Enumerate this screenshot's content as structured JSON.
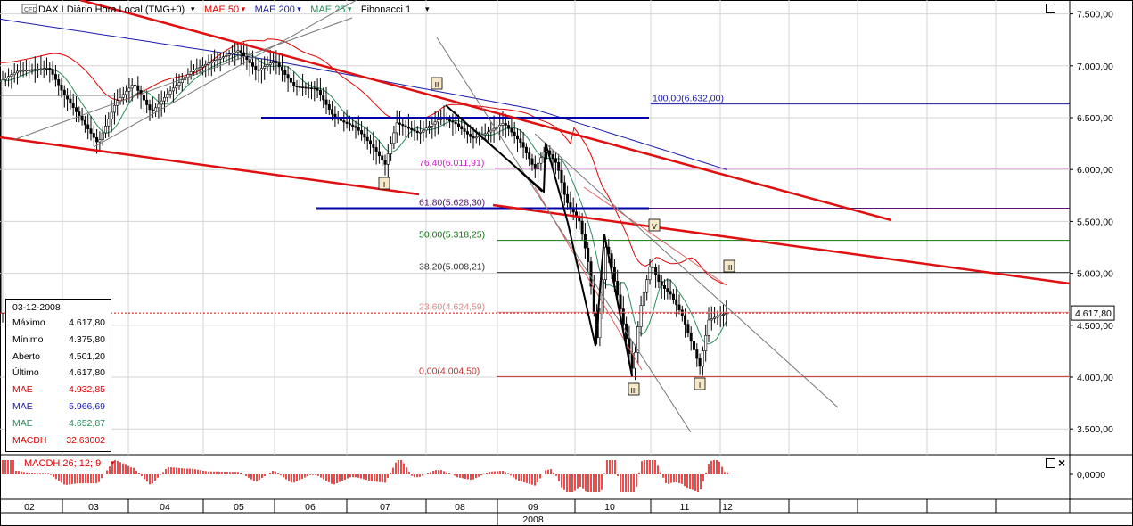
{
  "header": {
    "symbol_badge": "CFD",
    "symbol": "DAX.I Diário Hora Local (TMG+0)",
    "indicators": [
      {
        "label": "MAE 50",
        "color": "#e00000"
      },
      {
        "label": "MAE 200",
        "color": "#1a1aaa"
      },
      {
        "label": "MAE 25",
        "color": "#2a8a5a"
      },
      {
        "label": "Fibonacci 1",
        "color": "#000000"
      }
    ]
  },
  "info_panel": {
    "date": "03-12-2008",
    "rows": [
      {
        "label": "Máximo",
        "value": "4.617,80",
        "color": "#000000"
      },
      {
        "label": "Mínimo",
        "value": "4.375,80",
        "color": "#000000"
      },
      {
        "label": "Aberto",
        "value": "4.501,20",
        "color": "#000000"
      },
      {
        "label": "Último",
        "value": "4.617,80",
        "color": "#000000"
      },
      {
        "label": "MAE",
        "value": "4.932,85",
        "color": "#e00000"
      },
      {
        "label": "MAE",
        "value": "5.966,69",
        "color": "#1a1aaa"
      },
      {
        "label": "MAE",
        "value": "4.652,87",
        "color": "#2a8a5a"
      },
      {
        "label": "MACDH",
        "value": "32,63002",
        "color": "#e00000"
      }
    ]
  },
  "chart_data": {
    "type": "candlestick",
    "y_ticks": [
      "3.500,00",
      "4.000,00",
      "4.500,00",
      "5.000,00",
      "5.500,00",
      "6.000,00",
      "6.500,00",
      "7.000,00",
      "7.500,00"
    ],
    "ylim": [
      3250,
      7600
    ],
    "x_months": [
      "02",
      "03",
      "04",
      "05",
      "06",
      "07",
      "08",
      "09",
      "10",
      "11",
      "12"
    ],
    "x_year": "2008",
    "last_price_label": "4.617,80",
    "last_price": 4617.8,
    "fibonacci": [
      {
        "label": "100,00(6.632,00)",
        "value": 6632,
        "color": "#1a1aaa"
      },
      {
        "label": "76,40(6.011,91)",
        "value": 6012,
        "color": "#cc22cc"
      },
      {
        "label": "61,80(5.628,30)",
        "value": 5628,
        "color": "#551177"
      },
      {
        "label": "50,00(5.318,25)",
        "value": 5318,
        "color": "#117711"
      },
      {
        "label": "38,20(5.008,21)",
        "value": 5008,
        "color": "#333333"
      },
      {
        "label": "23,60(4.624,59)",
        "value": 4625,
        "color": "#dd8888"
      },
      {
        "label": "0,00(4.004,50)",
        "value": 4005,
        "color": "#cc3333"
      }
    ],
    "wave_labels": [
      "II",
      "I",
      "V",
      "III",
      "III",
      "I"
    ],
    "macd_label": "MACDH 26; 12; 9",
    "macd_tick": "0,0000",
    "grid": true
  }
}
